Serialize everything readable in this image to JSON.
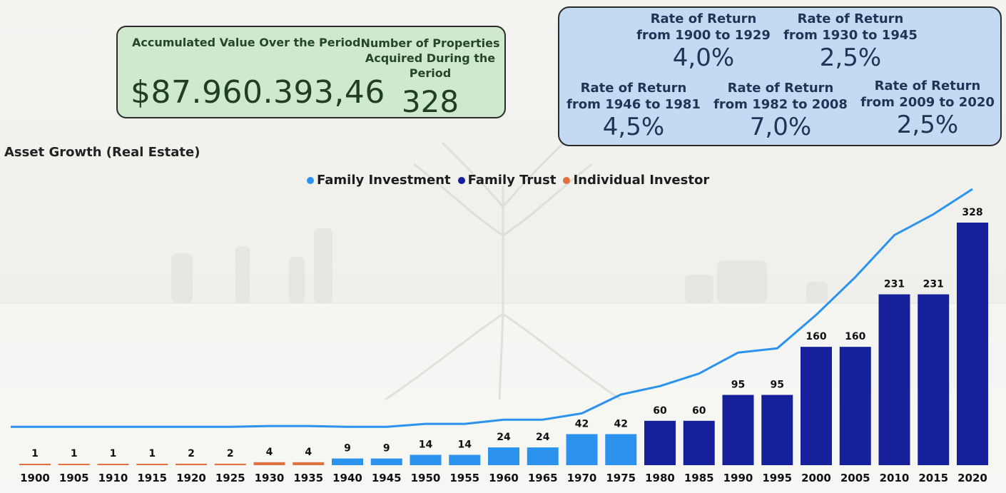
{
  "kpi_green": {
    "accumulated_label": "Accumulated Value Over the Period",
    "accumulated_value": "$87.960.393,46",
    "properties_label": "Number of Properties Acquired During the Period",
    "properties_value": "328"
  },
  "rates": [
    {
      "label": "Rate of Return from 1900 to 1929",
      "value": "4,0%"
    },
    {
      "label": "Rate of Return from 1930 to 1945",
      "value": "2,5%"
    },
    {
      "label": "Rate of Return from 1946 to 1981",
      "value": "4,5%"
    },
    {
      "label": "Rate of Return from 1982 to 2008",
      "value": "7,0%"
    },
    {
      "label": "Rate of Return from 2009 to 2020",
      "value": "2,5%"
    }
  ],
  "colors": {
    "family_investment": "#2b93ee",
    "family_trust": "#15209a",
    "individual_investor": "#e0703f",
    "line": "#2b93ee"
  },
  "chart_data": {
    "type": "bar",
    "title": "Asset Growth (Real Estate)",
    "legend": [
      "Family Investment",
      "Family Trust",
      "Individual Investor"
    ],
    "categories": [
      "1900",
      "1905",
      "1910",
      "1915",
      "1920",
      "1925",
      "1930",
      "1935",
      "1940",
      "1945",
      "1950",
      "1955",
      "1960",
      "1965",
      "1970",
      "1975",
      "1980",
      "1985",
      "1990",
      "1995",
      "2000",
      "2005",
      "2010",
      "2015",
      "2020"
    ],
    "values": [
      1,
      1,
      1,
      1,
      2,
      2,
      4,
      4,
      9,
      9,
      14,
      14,
      24,
      24,
      42,
      42,
      60,
      60,
      95,
      95,
      160,
      160,
      231,
      231,
      328
    ],
    "series_of_bar": [
      "Individual Investor",
      "Individual Investor",
      "Individual Investor",
      "Individual Investor",
      "Individual Investor",
      "Individual Investor",
      "Individual Investor",
      "Individual Investor",
      "Family Investment",
      "Family Investment",
      "Family Investment",
      "Family Investment",
      "Family Investment",
      "Family Investment",
      "Family Investment",
      "Family Investment",
      "Family Trust",
      "Family Trust",
      "Family Trust",
      "Family Trust",
      "Family Trust",
      "Family Trust",
      "Family Trust",
      "Family Trust",
      "Family Trust"
    ],
    "line_values": [
      0.3,
      0.3,
      0.3,
      0.3,
      0.3,
      0.3,
      0.5,
      0.5,
      0.3,
      0.3,
      1,
      1,
      2,
      2,
      3.5,
      8,
      10,
      13,
      18,
      19,
      27,
      36,
      46,
      51,
      57
    ],
    "ylim": [
      0,
      340
    ],
    "line_ylim": [
      0,
      65
    ]
  }
}
